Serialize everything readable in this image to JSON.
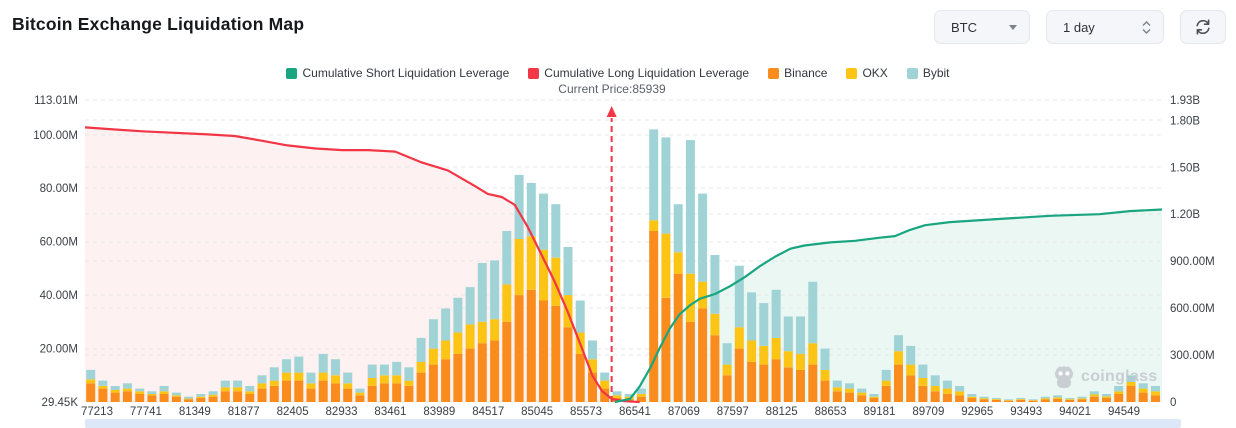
{
  "header": {
    "title": "Bitcoin Exchange Liquidation Map"
  },
  "controls": {
    "symbol": "BTC",
    "interval": "1 day",
    "refresh_icon": "refresh-icon"
  },
  "legend": [
    {
      "label": "Cumulative Short Liquidation Leverage",
      "color": "#18a57f"
    },
    {
      "label": "Cumulative Long Liquidation Leverage",
      "color": "#f23645"
    },
    {
      "label": "Binance",
      "color": "#fa8c1d"
    },
    {
      "label": "OKX",
      "color": "#fcc414"
    },
    {
      "label": "Bybit",
      "color": "#9fd3d6"
    }
  ],
  "annotation": {
    "current_price_label": "Current Price:85939",
    "current_price": 85939
  },
  "watermark": {
    "label": "coinglass",
    "icon": "owl-logo-icon"
  },
  "chart_data": {
    "type": "bar+line",
    "title": "Bitcoin Exchange Liquidation Map",
    "grid": true,
    "legend_position": "top-center",
    "left_axis": {
      "unit": "M",
      "max": 113.01,
      "ticks": [
        "113.01M",
        "100.00M",
        "80.00M",
        "60.00M",
        "40.00M",
        "20.00M",
        "29.45K"
      ],
      "tick_values": [
        113.01,
        100,
        80,
        60,
        40,
        20,
        0.02945
      ]
    },
    "right_axis": {
      "unit": "B",
      "max": 1.93,
      "ticks": [
        "1.93B",
        "1.80B",
        "1.50B",
        "1.20B",
        "900.00M",
        "600.00M",
        "300.00M",
        "0"
      ],
      "tick_values": [
        1.93,
        1.8,
        1.5,
        1.2,
        0.9,
        0.6,
        0.3,
        0
      ]
    },
    "x_labels": [
      "77213",
      "77741",
      "81349",
      "81877",
      "82405",
      "82933",
      "83461",
      "83989",
      "84517",
      "85045",
      "85573",
      "86541",
      "87069",
      "87597",
      "88125",
      "88653",
      "89181",
      "89709",
      "92965",
      "93493",
      "94021",
      "94549"
    ],
    "current_price_fraction": 0.489,
    "bars": {
      "names": [
        "Binance",
        "OKX",
        "Bybit"
      ],
      "colors": [
        "#fa8c1d",
        "#fcc414",
        "#9fd3d6"
      ],
      "unit": "M",
      "stacks": [
        [
          7,
          1.5,
          3.5
        ],
        [
          5,
          1,
          2
        ],
        [
          3.5,
          1,
          1.5
        ],
        [
          4,
          1,
          2
        ],
        [
          3,
          1,
          1
        ],
        [
          2.5,
          0.5,
          1
        ],
        [
          3,
          1,
          2
        ],
        [
          2,
          0.5,
          1
        ],
        [
          1,
          0.3,
          0.7
        ],
        [
          1.5,
          0.5,
          1
        ],
        [
          2,
          0.7,
          1.3
        ],
        [
          4,
          1.5,
          2.5
        ],
        [
          4,
          1.5,
          2.5
        ],
        [
          3,
          1,
          2
        ],
        [
          5,
          2,
          3
        ],
        [
          6,
          2,
          5
        ],
        [
          8,
          3,
          5
        ],
        [
          8,
          3,
          6
        ],
        [
          5,
          2,
          4
        ],
        [
          8,
          3,
          7
        ],
        [
          7,
          3,
          6
        ],
        [
          5,
          2,
          4
        ],
        [
          2.5,
          1,
          1.5
        ],
        [
          6,
          3,
          5
        ],
        [
          7,
          3,
          4
        ],
        [
          7,
          3,
          5
        ],
        [
          6,
          2,
          5
        ],
        [
          11,
          4,
          9
        ],
        [
          14,
          6,
          11
        ],
        [
          16,
          7,
          12
        ],
        [
          18,
          8,
          13
        ],
        [
          20,
          9,
          14
        ],
        [
          22,
          8,
          22
        ],
        [
          23,
          8,
          22
        ],
        [
          30,
          14,
          20
        ],
        [
          40,
          21,
          24
        ],
        [
          42,
          20,
          20
        ],
        [
          38,
          19,
          21
        ],
        [
          36,
          18,
          20
        ],
        [
          28,
          12,
          18
        ],
        [
          18,
          8,
          12
        ],
        [
          11,
          5,
          7
        ],
        [
          5,
          3,
          3
        ],
        [
          1.5,
          1,
          1.5
        ],
        [
          1,
          1,
          1
        ],
        [
          2,
          1,
          2
        ],
        [
          64,
          4,
          34
        ],
        [
          39,
          24,
          36
        ],
        [
          48,
          8,
          18
        ],
        [
          30,
          18,
          50
        ],
        [
          35,
          10,
          33
        ],
        [
          25,
          8,
          22
        ],
        [
          10,
          4,
          8
        ],
        [
          20,
          8,
          23
        ],
        [
          15,
          8,
          18
        ],
        [
          14,
          7,
          16
        ],
        [
          16,
          8,
          18
        ],
        [
          13,
          6,
          13
        ],
        [
          12,
          6,
          14
        ],
        [
          14,
          8,
          23
        ],
        [
          8,
          4,
          8
        ],
        [
          4,
          1.5,
          2.5
        ],
        [
          3.5,
          1.5,
          2
        ],
        [
          2.5,
          1,
          1.5
        ],
        [
          1.5,
          0.5,
          1
        ],
        [
          6,
          2,
          4
        ],
        [
          14,
          5,
          6
        ],
        [
          10,
          4,
          7
        ],
        [
          6,
          3,
          5
        ],
        [
          4,
          2,
          4
        ],
        [
          3,
          2,
          3
        ],
        [
          2.5,
          1.5,
          2
        ],
        [
          1.5,
          0.5,
          1
        ],
        [
          1,
          0.4,
          0.6
        ],
        [
          0.8,
          0.3,
          0.4
        ],
        [
          0.5,
          0.2,
          0.3
        ],
        [
          0.8,
          0.3,
          0.4
        ],
        [
          0.5,
          0.2,
          0.3
        ],
        [
          1,
          0.4,
          0.6
        ],
        [
          1.2,
          0.5,
          0.8
        ],
        [
          0.8,
          0.3,
          0.4
        ],
        [
          1,
          0.4,
          0.6
        ],
        [
          2,
          0.8,
          1.2
        ],
        [
          1.5,
          0.6,
          0.9
        ],
        [
          3,
          1,
          2
        ],
        [
          6,
          1.5,
          2.5
        ],
        [
          3.5,
          1.5,
          2
        ],
        [
          2.5,
          1.5,
          2
        ]
      ]
    },
    "long_line": {
      "name": "Cumulative Long Liquidation Leverage",
      "color": "#f23645",
      "fill": "rgba(242,54,69,0.07)",
      "unit": "B",
      "points": [
        [
          0.0,
          1.755
        ],
        [
          0.053,
          1.73
        ],
        [
          0.114,
          1.71
        ],
        [
          0.139,
          1.7
        ],
        [
          0.164,
          1.67
        ],
        [
          0.188,
          1.64
        ],
        [
          0.214,
          1.62
        ],
        [
          0.239,
          1.61
        ],
        [
          0.263,
          1.61
        ],
        [
          0.288,
          1.6
        ],
        [
          0.313,
          1.53
        ],
        [
          0.337,
          1.48
        ],
        [
          0.362,
          1.38
        ],
        [
          0.374,
          1.33
        ],
        [
          0.387,
          1.31
        ],
        [
          0.399,
          1.26
        ],
        [
          0.411,
          1.12
        ],
        [
          0.424,
          0.94
        ],
        [
          0.436,
          0.77
        ],
        [
          0.448,
          0.58
        ],
        [
          0.461,
          0.35
        ],
        [
          0.471,
          0.17
        ],
        [
          0.48,
          0.07
        ],
        [
          0.489,
          0.02
        ],
        [
          0.501,
          0.005
        ],
        [
          0.515,
          0.0
        ]
      ]
    },
    "short_line": {
      "name": "Cumulative Short Liquidation Leverage",
      "color": "#18a57f",
      "fill": "rgba(24,165,127,0.09)",
      "unit": "B",
      "points": [
        [
          0.492,
          0.0
        ],
        [
          0.506,
          0.02
        ],
        [
          0.515,
          0.1
        ],
        [
          0.525,
          0.22
        ],
        [
          0.534,
          0.35
        ],
        [
          0.543,
          0.47
        ],
        [
          0.552,
          0.56
        ],
        [
          0.562,
          0.62
        ],
        [
          0.571,
          0.66
        ],
        [
          0.585,
          0.69
        ],
        [
          0.599,
          0.74
        ],
        [
          0.613,
          0.8
        ],
        [
          0.627,
          0.87
        ],
        [
          0.641,
          0.93
        ],
        [
          0.655,
          0.98
        ],
        [
          0.668,
          1.0
        ],
        [
          0.692,
          1.02
        ],
        [
          0.715,
          1.03
        ],
        [
          0.738,
          1.05
        ],
        [
          0.752,
          1.06
        ],
        [
          0.766,
          1.1
        ],
        [
          0.78,
          1.13
        ],
        [
          0.803,
          1.15
        ],
        [
          0.85,
          1.17
        ],
        [
          0.896,
          1.19
        ],
        [
          0.942,
          1.2
        ],
        [
          0.97,
          1.22
        ],
        [
          1.0,
          1.23
        ]
      ]
    }
  }
}
